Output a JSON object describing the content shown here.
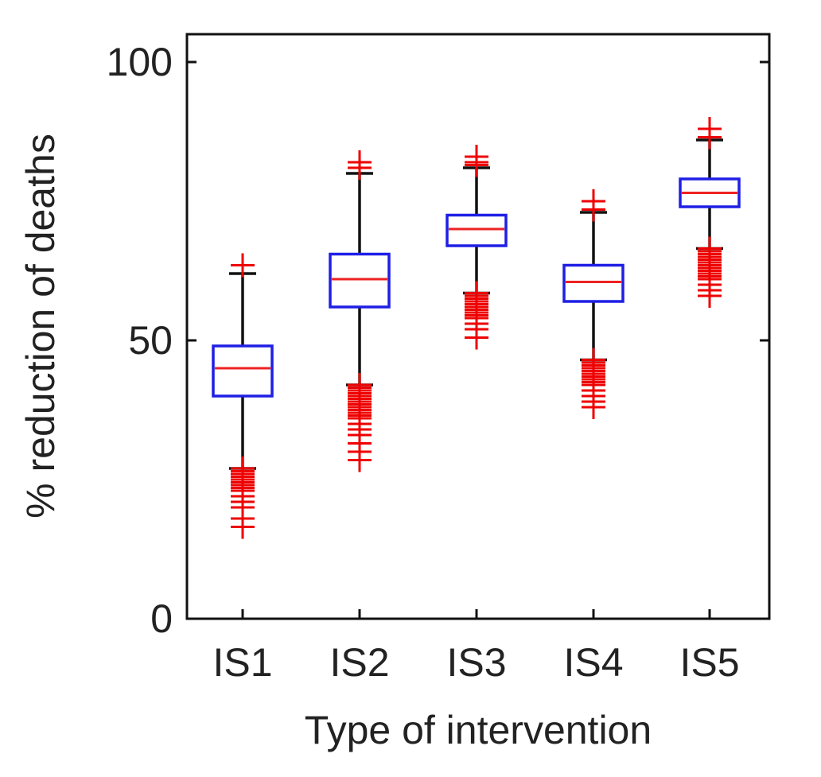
{
  "chart_data": {
    "type": "box",
    "title": "",
    "xlabel": "Type of intervention",
    "ylabel": "% reduction of deaths",
    "ylim": [
      0,
      100
    ],
    "yticks": [
      0,
      50,
      100
    ],
    "grid": false,
    "categories": [
      "IS1",
      "IS2",
      "IS3",
      "IS4",
      "IS5"
    ],
    "boxes": [
      {
        "category": "IS1",
        "whisker_low": 27,
        "q1": 40,
        "median": 45,
        "q3": 49,
        "whisker_high": 62,
        "outliers_low": [
          27,
          26.5,
          26,
          25.5,
          25,
          24.5,
          24,
          23.5,
          23,
          22,
          21,
          20,
          18,
          16.5
        ],
        "outliers_high": [
          63.5
        ]
      },
      {
        "category": "IS2",
        "whisker_low": 42,
        "q1": 56,
        "median": 61,
        "q3": 65.5,
        "whisker_high": 80,
        "outliers_low": [
          42,
          41.5,
          41,
          40.5,
          40,
          39.5,
          39,
          38.5,
          38,
          37.5,
          37,
          36.5,
          36,
          35,
          34,
          33,
          31.5,
          30,
          28.5
        ],
        "outliers_high": [
          81,
          82
        ]
      },
      {
        "category": "IS3",
        "whisker_low": 58.5,
        "q1": 67,
        "median": 70,
        "q3": 72.5,
        "whisker_high": 81,
        "outliers_low": [
          58.5,
          58,
          57.5,
          57,
          56.5,
          56,
          55.5,
          55,
          54.5,
          54,
          53,
          52,
          50.5
        ],
        "outliers_high": [
          81.5,
          82,
          83
        ]
      },
      {
        "category": "IS4",
        "whisker_low": 46.5,
        "q1": 57,
        "median": 60.5,
        "q3": 63.5,
        "whisker_high": 73,
        "outliers_low": [
          46.5,
          46,
          45.5,
          45,
          44.5,
          44,
          43.5,
          43,
          42.5,
          42,
          41,
          40,
          39,
          38
        ],
        "outliers_high": [
          73.5,
          75
        ]
      },
      {
        "category": "IS5",
        "whisker_low": 66.5,
        "q1": 74,
        "median": 76.5,
        "q3": 79,
        "whisker_high": 86,
        "outliers_low": [
          66.5,
          66,
          65.5,
          65,
          64.5,
          64,
          63.5,
          63,
          62.5,
          62,
          61.5,
          61,
          60,
          59,
          58
        ],
        "outliers_high": [
          86.5,
          88
        ]
      }
    ],
    "colors": {
      "box": "#1f1fe6",
      "median": "#ee2222",
      "whisker": "#111111",
      "outlier": "#ee0000",
      "axis": "#111111"
    }
  }
}
